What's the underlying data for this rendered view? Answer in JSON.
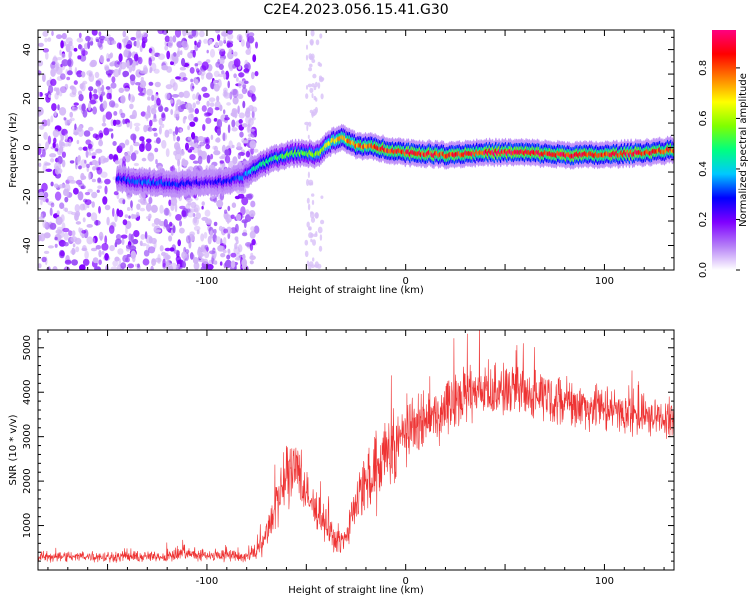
{
  "title": "C2E4.2023.056.15.41.G30",
  "chart_data": [
    {
      "type": "heatmap",
      "xlabel": "Height of straight line (km)",
      "ylabel": "Frequency (Hz)",
      "xlim": [
        -185,
        135
      ],
      "ylim": [
        -50,
        48
      ],
      "x_ticks": [
        -100,
        0,
        100
      ],
      "y_ticks": [
        -40,
        -20,
        0,
        20,
        40
      ],
      "colorbar": {
        "label": "Normalized spectral amplitude",
        "range": [
          0,
          0.95
        ],
        "ticks": [
          0.0,
          0.2,
          0.4,
          0.6,
          0.8
        ],
        "tick_labels": [
          "0.0",
          "0.2",
          "0.4",
          "0.6",
          "0.8"
        ],
        "colormap": [
          "#ffffff",
          "#b57ff7",
          "#7f00ff",
          "#0000ff",
          "#00c8ff",
          "#00ff80",
          "#80ff00",
          "#ffff00",
          "#ff8000",
          "#ff0000",
          "#ff0080"
        ]
      },
      "ridge": {
        "x": [
          -145,
          -130,
          -115,
          -100,
          -90,
          -82,
          -75,
          -68,
          -60,
          -52,
          -45,
          -38,
          -32,
          -25,
          -15,
          0,
          20,
          40,
          60,
          80,
          100,
          120,
          135
        ],
        "y": [
          -13,
          -14,
          -15,
          -14,
          -14,
          -12,
          -8,
          -5,
          -3,
          -2,
          -3,
          2,
          4,
          1,
          0,
          -2,
          -3,
          -2,
          -2,
          -3,
          -3,
          -2,
          -1
        ],
        "amp": [
          0.3,
          0.35,
          0.3,
          0.25,
          0.3,
          0.35,
          0.45,
          0.5,
          0.55,
          0.55,
          0.6,
          0.7,
          0.75,
          0.8,
          0.85,
          0.9,
          0.88,
          0.9,
          0.92,
          0.9,
          0.88,
          0.9,
          0.85
        ]
      },
      "noise_region_x": [
        -185,
        -75
      ],
      "noise_patch_x": [
        -50,
        -42
      ]
    },
    {
      "type": "line",
      "xlabel": "Height of straight line (km)",
      "ylabel": "SNR (10 * v/v)",
      "xlim": [
        -185,
        135
      ],
      "ylim": [
        0,
        5400
      ],
      "x_ticks": [
        -100,
        0,
        100
      ],
      "y_ticks": [
        1000,
        2000,
        3000,
        4000,
        5000
      ],
      "series": [
        {
          "color": "#ee3333",
          "envelope_x": [
            -185,
            -120,
            -112,
            -100,
            -80,
            -72,
            -66,
            -60,
            -55,
            -50,
            -46,
            -42,
            -38,
            -34,
            -30,
            -25,
            -20,
            -15,
            -10,
            -5,
            0,
            10,
            20,
            30,
            40,
            50,
            60,
            70,
            80,
            90,
            100,
            110,
            120,
            135
          ],
          "envelope_mean": [
            300,
            300,
            400,
            320,
            300,
            550,
            1400,
            2000,
            2400,
            1600,
            1400,
            1200,
            800,
            600,
            700,
            1600,
            1900,
            2100,
            2600,
            2800,
            3100,
            3400,
            3600,
            4000,
            4050,
            4000,
            4000,
            3950,
            3800,
            3700,
            3600,
            3500,
            3450,
            3400
          ],
          "envelope_spread": [
            150,
            150,
            200,
            150,
            150,
            300,
            700,
            900,
            1000,
            700,
            500,
            500,
            400,
            300,
            300,
            700,
            900,
            1000,
            1000,
            900,
            850,
            800,
            800,
            800,
            750,
            700,
            700,
            650,
            650,
            650,
            600,
            550,
            550,
            500
          ]
        }
      ]
    }
  ]
}
